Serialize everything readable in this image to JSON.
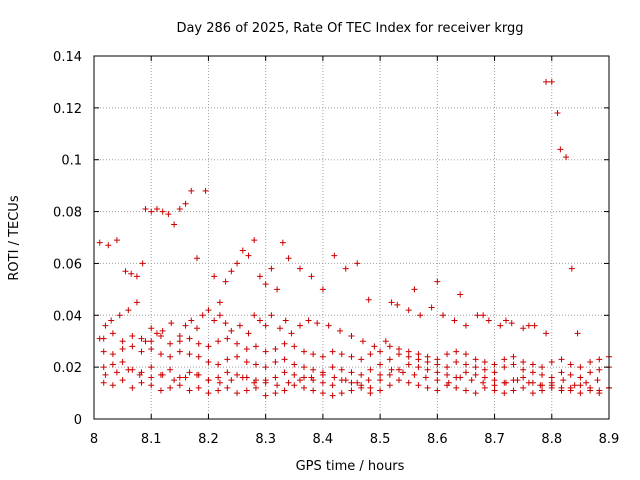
{
  "chart_data": {
    "type": "scatter",
    "title": "Day 286 of 2025, Rate Of TEC Index for receiver krgg",
    "xlabel": "GPS time / hours",
    "ylabel": "ROTI / TECUs",
    "xlim": [
      8.0,
      8.9
    ],
    "ylim": [
      0,
      0.14
    ],
    "grid": true,
    "marker": "+",
    "color": "#cc0000",
    "x_ticks": [
      8.0,
      8.1,
      8.2,
      8.3,
      8.4,
      8.5,
      8.6,
      8.7,
      8.8,
      8.9
    ],
    "x_tick_labels": [
      "8",
      "8.1",
      "8.2",
      "8.3",
      "8.4",
      "8.5",
      "8.6",
      "8.7",
      "8.8",
      "8.9"
    ],
    "y_ticks": [
      0,
      0.02,
      0.04,
      0.06,
      0.08,
      0.1,
      0.12,
      0.14
    ],
    "y_tick_labels": [
      "0",
      "0.02",
      "0.04",
      "0.06",
      "0.08",
      "0.1",
      "0.12",
      "0.14"
    ],
    "series": [
      {
        "name": "ROTI",
        "x": [
          8.017,
          8.033,
          8.05,
          8.067,
          8.083,
          8.1,
          8.117,
          8.133,
          8.15,
          8.167,
          8.183,
          8.2,
          8.217,
          8.233,
          8.25,
          8.267,
          8.283,
          8.3,
          8.317,
          8.333,
          8.35,
          8.367,
          8.383,
          8.4,
          8.417,
          8.433,
          8.45,
          8.467,
          8.483,
          8.5,
          8.517,
          8.533,
          8.55,
          8.567,
          8.583,
          8.6,
          8.617,
          8.633,
          8.65,
          8.667,
          8.683,
          8.7,
          8.717,
          8.733,
          8.75,
          8.767,
          8.783,
          8.8,
          8.817,
          8.833,
          8.85,
          8.867,
          8.883,
          8.9,
          8.017,
          8.033,
          8.05,
          8.067,
          8.083,
          8.1,
          8.117,
          8.133,
          8.15,
          8.167,
          8.183,
          8.2,
          8.217,
          8.233,
          8.25,
          8.267,
          8.283,
          8.3,
          8.317,
          8.333,
          8.35,
          8.367,
          8.383,
          8.4,
          8.417,
          8.433,
          8.45,
          8.467,
          8.483,
          8.5,
          8.517,
          8.533,
          8.55,
          8.567,
          8.583,
          8.6,
          8.617,
          8.633,
          8.65,
          8.667,
          8.683,
          8.7,
          8.717,
          8.733,
          8.75,
          8.767,
          8.783,
          8.8,
          8.817,
          8.833,
          8.85,
          8.867,
          8.883,
          8.9,
          8.017,
          8.033,
          8.05,
          8.067,
          8.083,
          8.1,
          8.117,
          8.133,
          8.15,
          8.167,
          8.183,
          8.2,
          8.217,
          8.233,
          8.25,
          8.267,
          8.283,
          8.3,
          8.317,
          8.333,
          8.35,
          8.367,
          8.383,
          8.4,
          8.417,
          8.433,
          8.45,
          8.467,
          8.483,
          8.5,
          8.517,
          8.533,
          8.55,
          8.567,
          8.583,
          8.6,
          8.617,
          8.633,
          8.65,
          8.667,
          8.683,
          8.7,
          8.717,
          8.733,
          8.75,
          8.767,
          8.783,
          8.8,
          8.817,
          8.833,
          8.85,
          8.867,
          8.883,
          8.9,
          8.017,
          8.033,
          8.05,
          8.067,
          8.083,
          8.1,
          8.117,
          8.133,
          8.15,
          8.167,
          8.183,
          8.2,
          8.217,
          8.233,
          8.25,
          8.267,
          8.283,
          8.3,
          8.317,
          8.333,
          8.35,
          8.367,
          8.383,
          8.4,
          8.417,
          8.433,
          8.45,
          8.467,
          8.483,
          8.5,
          8.517,
          8.533,
          8.55,
          8.567,
          8.583,
          8.6,
          8.617,
          8.633,
          8.65,
          8.667,
          8.683,
          8.7,
          8.717,
          8.733,
          8.75,
          8.767,
          8.783,
          8.8,
          8.817,
          8.833,
          8.85,
          8.867,
          8.883,
          8.9,
          8.02,
          8.04,
          8.06,
          8.08,
          8.1,
          8.12,
          8.14,
          8.16,
          8.18,
          8.2,
          8.22,
          8.24,
          8.26,
          8.28,
          8.3,
          8.32,
          8.34,
          8.36,
          8.38,
          8.4,
          8.42,
          8.44,
          8.46,
          8.48,
          8.5,
          8.52,
          8.54,
          8.56,
          8.58,
          8.6,
          8.62,
          8.64,
          8.66,
          8.68,
          8.7,
          8.72,
          8.74,
          8.76,
          8.78,
          8.8,
          8.82,
          8.84,
          8.86,
          8.88,
          8.01,
          8.02,
          8.03,
          8.045,
          8.06,
          8.075,
          8.09,
          8.1,
          8.11,
          8.12,
          8.135,
          8.15,
          8.16,
          8.17,
          8.18,
          8.19,
          8.2,
          8.21,
          8.22,
          8.23,
          8.24,
          8.255,
          8.27,
          8.28,
          8.29,
          8.3,
          8.31,
          8.325,
          8.335,
          8.345,
          8.36,
          8.375,
          8.39,
          8.41,
          8.43,
          8.45,
          8.47,
          8.49,
          8.51,
          8.53,
          8.55,
          8.57,
          8.59,
          8.61,
          8.63,
          8.65,
          8.67,
          8.69,
          8.71,
          8.73,
          8.75,
          8.77,
          8.79,
          8.01,
          8.025,
          8.04,
          8.055,
          8.065,
          8.075,
          8.085,
          8.09,
          8.1,
          8.11,
          8.12,
          8.13,
          8.14,
          8.15,
          8.16,
          8.17,
          8.18,
          8.195,
          8.21,
          8.22,
          8.23,
          8.24,
          8.25,
          8.26,
          8.27,
          8.28,
          8.29,
          8.3,
          8.31,
          8.32,
          8.33,
          8.34,
          8.36,
          8.38,
          8.4,
          8.42,
          8.44,
          8.46,
          8.48,
          8.52,
          8.56,
          8.6,
          8.64,
          8.68,
          8.72,
          8.76,
          8.79,
          8.8,
          8.81,
          8.815,
          8.825,
          8.835,
          8.845
        ],
        "y": [
          0.02,
          0.021,
          0.022,
          0.019,
          0.018,
          0.02,
          0.017,
          0.019,
          0.016,
          0.018,
          0.017,
          0.015,
          0.016,
          0.018,
          0.017,
          0.016,
          0.015,
          0.014,
          0.016,
          0.018,
          0.017,
          0.016,
          0.015,
          0.014,
          0.013,
          0.015,
          0.014,
          0.013,
          0.012,
          0.015,
          0.017,
          0.019,
          0.021,
          0.02,
          0.019,
          0.018,
          0.017,
          0.016,
          0.018,
          0.017,
          0.016,
          0.015,
          0.014,
          0.015,
          0.016,
          0.014,
          0.013,
          0.012,
          0.011,
          0.012,
          0.013,
          0.012,
          0.011,
          0.012,
          0.026,
          0.025,
          0.027,
          0.028,
          0.026,
          0.027,
          0.025,
          0.024,
          0.026,
          0.025,
          0.024,
          0.022,
          0.021,
          0.023,
          0.024,
          0.022,
          0.021,
          0.02,
          0.022,
          0.023,
          0.021,
          0.02,
          0.019,
          0.018,
          0.02,
          0.019,
          0.018,
          0.017,
          0.019,
          0.021,
          0.023,
          0.025,
          0.024,
          0.023,
          0.022,
          0.021,
          0.02,
          0.022,
          0.021,
          0.02,
          0.019,
          0.018,
          0.02,
          0.021,
          0.019,
          0.018,
          0.017,
          0.016,
          0.018,
          0.017,
          0.016,
          0.018,
          0.019,
          0.02,
          0.031,
          0.033,
          0.03,
          0.032,
          0.031,
          0.03,
          0.032,
          0.029,
          0.03,
          0.031,
          0.029,
          0.028,
          0.03,
          0.031,
          0.029,
          0.027,
          0.028,
          0.026,
          0.027,
          0.029,
          0.028,
          0.026,
          0.025,
          0.024,
          0.026,
          0.025,
          0.024,
          0.023,
          0.025,
          0.026,
          0.028,
          0.027,
          0.026,
          0.025,
          0.024,
          0.023,
          0.025,
          0.026,
          0.025,
          0.023,
          0.022,
          0.021,
          0.023,
          0.024,
          0.022,
          0.021,
          0.02,
          0.022,
          0.023,
          0.021,
          0.02,
          0.022,
          0.023,
          0.024,
          0.014,
          0.013,
          0.015,
          0.012,
          0.014,
          0.013,
          0.011,
          0.012,
          0.013,
          0.011,
          0.012,
          0.01,
          0.011,
          0.012,
          0.01,
          0.011,
          0.012,
          0.009,
          0.01,
          0.011,
          0.013,
          0.012,
          0.011,
          0.01,
          0.009,
          0.01,
          0.011,
          0.012,
          0.01,
          0.011,
          0.013,
          0.015,
          0.014,
          0.013,
          0.012,
          0.011,
          0.013,
          0.012,
          0.011,
          0.01,
          0.012,
          0.011,
          0.01,
          0.011,
          0.012,
          0.01,
          0.011,
          0.013,
          0.012,
          0.011,
          0.01,
          0.011,
          0.01,
          0.012,
          0.017,
          0.018,
          0.019,
          0.017,
          0.016,
          0.017,
          0.015,
          0.016,
          0.017,
          0.015,
          0.014,
          0.015,
          0.016,
          0.014,
          0.015,
          0.013,
          0.014,
          0.015,
          0.016,
          0.017,
          0.016,
          0.015,
          0.014,
          0.015,
          0.017,
          0.019,
          0.018,
          0.017,
          0.016,
          0.015,
          0.014,
          0.016,
          0.015,
          0.014,
          0.013,
          0.014,
          0.015,
          0.014,
          0.013,
          0.014,
          0.015,
          0.013,
          0.014,
          0.015,
          0.031,
          0.036,
          0.038,
          0.04,
          0.042,
          0.045,
          0.03,
          0.035,
          0.033,
          0.034,
          0.037,
          0.032,
          0.036,
          0.038,
          0.035,
          0.04,
          0.042,
          0.038,
          0.04,
          0.037,
          0.034,
          0.036,
          0.033,
          0.04,
          0.038,
          0.036,
          0.04,
          0.035,
          0.038,
          0.033,
          0.036,
          0.038,
          0.037,
          0.036,
          0.034,
          0.032,
          0.03,
          0.028,
          0.03,
          0.044,
          0.042,
          0.04,
          0.043,
          0.04,
          0.038,
          0.036,
          0.04,
          0.038,
          0.036,
          0.037,
          0.035,
          0.036,
          0.033,
          0.068,
          0.067,
          0.069,
          0.057,
          0.056,
          0.055,
          0.06,
          0.081,
          0.08,
          0.081,
          0.08,
          0.079,
          0.075,
          0.081,
          0.083,
          0.088,
          0.062,
          0.088,
          0.055,
          0.045,
          0.053,
          0.057,
          0.06,
          0.065,
          0.063,
          0.069,
          0.055,
          0.052,
          0.058,
          0.05,
          0.068,
          0.062,
          0.058,
          0.055,
          0.05,
          0.063,
          0.058,
          0.06,
          0.046,
          0.045,
          0.05,
          0.053,
          0.048,
          0.04,
          0.038,
          0.036,
          0.13,
          0.13,
          0.118,
          0.104,
          0.101,
          0.058,
          0.033
        ]
      }
    ]
  }
}
